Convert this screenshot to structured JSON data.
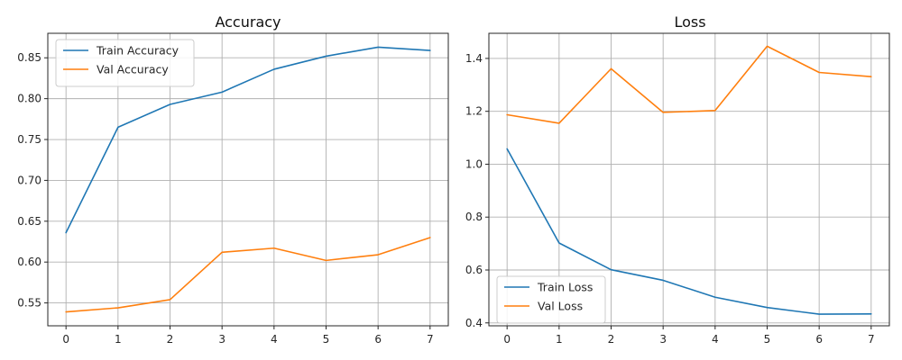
{
  "chart_data": [
    {
      "type": "line",
      "title": "Accuracy",
      "xlabel": "",
      "ylabel": "",
      "x": [
        0,
        1,
        2,
        3,
        4,
        5,
        6,
        7
      ],
      "xticks": [
        "0",
        "1",
        "2",
        "3",
        "4",
        "5",
        "6",
        "7"
      ],
      "yticks": [
        "0.55",
        "0.60",
        "0.65",
        "0.70",
        "0.75",
        "0.80",
        "0.85"
      ],
      "ytick_values": [
        0.55,
        0.6,
        0.65,
        0.7,
        0.75,
        0.8,
        0.85
      ],
      "xlim": [
        -0.35,
        7.35
      ],
      "ylim": [
        0.522,
        0.88
      ],
      "grid": true,
      "legend_position": "upper-left",
      "series": [
        {
          "name": "Train Accuracy",
          "color": "#1f77b4",
          "values": [
            0.636,
            0.765,
            0.793,
            0.808,
            0.836,
            0.852,
            0.863,
            0.859
          ]
        },
        {
          "name": "Val Accuracy",
          "color": "#ff7f0e",
          "values": [
            0.539,
            0.544,
            0.554,
            0.612,
            0.617,
            0.602,
            0.609,
            0.63
          ]
        }
      ]
    },
    {
      "type": "line",
      "title": "Loss",
      "xlabel": "",
      "ylabel": "",
      "x": [
        0,
        1,
        2,
        3,
        4,
        5,
        6,
        7
      ],
      "xticks": [
        "0",
        "1",
        "2",
        "3",
        "4",
        "5",
        "6",
        "7"
      ],
      "yticks": [
        "0.4",
        "0.6",
        "0.8",
        "1.0",
        "1.2",
        "1.4"
      ],
      "ytick_values": [
        0.4,
        0.6,
        0.8,
        1.0,
        1.2,
        1.4
      ],
      "xlim": [
        -0.35,
        7.35
      ],
      "ylim": [
        0.389,
        1.495
      ],
      "grid": true,
      "legend_position": "lower-left",
      "series": [
        {
          "name": "Train Loss",
          "color": "#1f77b4",
          "values": [
            1.058,
            0.702,
            0.601,
            0.561,
            0.497,
            0.458,
            0.433,
            0.434
          ]
        },
        {
          "name": "Val Loss",
          "color": "#ff7f0e",
          "values": [
            1.187,
            1.155,
            1.361,
            1.196,
            1.203,
            1.446,
            1.347,
            1.331
          ]
        }
      ]
    }
  ]
}
